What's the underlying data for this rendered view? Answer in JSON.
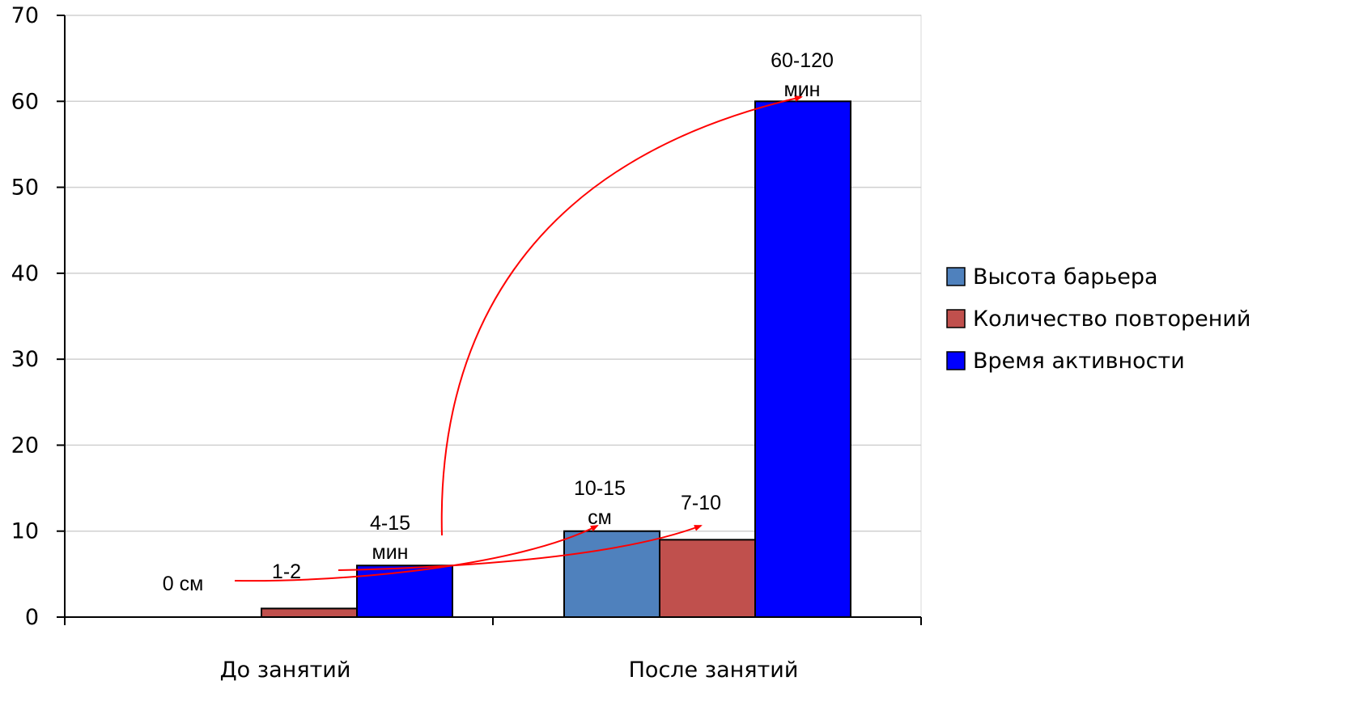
{
  "chart_data": {
    "type": "bar",
    "categories": [
      "До занятий",
      "После занятий"
    ],
    "series": [
      {
        "name": "Высота барьера",
        "values": [
          0,
          10
        ],
        "color": "#4f81bd"
      },
      {
        "name": "Количество повторений",
        "values": [
          1,
          9
        ],
        "color": "#c0504d"
      },
      {
        "name": "Время активности",
        "values": [
          6,
          60
        ],
        "color": "#0000ff"
      }
    ],
    "ylim": [
      0,
      70
    ],
    "yticks": [
      0,
      10,
      20,
      30,
      40,
      50,
      60,
      70
    ],
    "grid": true,
    "legend_position": "right",
    "annotations": [
      {
        "lines": [
          "0 см"
        ],
        "series": 0,
        "category": 0
      },
      {
        "lines": [
          "1-2"
        ],
        "series": 1,
        "category": 0
      },
      {
        "lines": [
          "4-15",
          "мин"
        ],
        "series": 2,
        "category": 0
      },
      {
        "lines": [
          "10-15",
          "см"
        ],
        "series": 0,
        "category": 1
      },
      {
        "lines": [
          "7-10"
        ],
        "series": 1,
        "category": 1
      },
      {
        "lines": [
          "60-120",
          "мин"
        ],
        "series": 2,
        "category": 1
      }
    ],
    "arrow_color": "#ff0000"
  }
}
